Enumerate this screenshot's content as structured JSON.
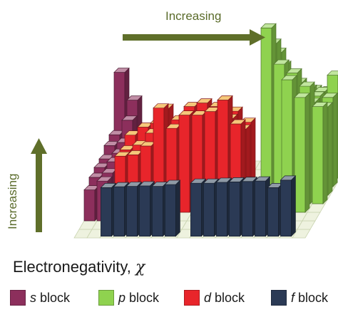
{
  "chart_data": {
    "type": "bar",
    "subtype": "3d-bar-periodic-table",
    "xlabel": "Electronegativity, χ",
    "xlabel_text": "Electronegativity,",
    "xlabel_symbol": "χ",
    "arrow_horizontal": "Increasing",
    "arrow_vertical": "Increasing",
    "legend": [
      {
        "letter": "s",
        "text": "block",
        "color": "#8c2f5c",
        "id": "s"
      },
      {
        "letter": "p",
        "text": "block",
        "color": "#8fd24f",
        "id": "p"
      },
      {
        "letter": "d",
        "text": "block",
        "color": "#e8252b",
        "id": "d"
      },
      {
        "letter": "f",
        "text": "block",
        "color": "#2b3a55",
        "id": "f"
      }
    ],
    "legend_placement": "bottom",
    "grid": true,
    "ylim": [
      0,
      4
    ],
    "series": [
      {
        "block": "s",
        "values": [
          [
            2.2,
            0.98,
            0.93,
            0.82,
            0.82,
            0.79,
            0.7
          ],
          [
            1.57,
            1.31,
            1.0,
            0.95,
            0.95,
            0.89,
            0.9
          ]
        ]
      },
      {
        "block": "d",
        "values": [
          [
            1.36,
            1.54,
            1.63,
            1.66,
            1.55,
            1.83,
            1.88,
            1.91,
            1.9,
            1.65
          ],
          [
            1.22,
            1.33,
            1.6,
            2.16,
            1.9,
            2.2,
            2.28,
            2.2,
            1.93,
            1.69
          ],
          [
            1.27,
            1.3,
            1.5,
            2.36,
            1.9,
            2.2,
            2.2,
            2.28,
            2.54,
            2.0
          ]
        ]
      },
      {
        "block": "p",
        "values": [
          [
            2.04,
            2.55,
            3.04,
            3.44,
            3.98
          ],
          [
            1.61,
            1.9,
            2.19,
            2.58,
            3.16
          ],
          [
            1.81,
            2.01,
            2.18,
            2.55,
            2.96,
            3.0
          ],
          [
            1.78,
            1.96,
            2.05,
            2.1,
            2.66,
            2.6
          ],
          [
            1.62,
            2.33,
            2.02,
            2.0,
            2.2
          ]
        ]
      },
      {
        "block": "f",
        "values": [
          1.1,
          1.12,
          1.13,
          1.14,
          1.13,
          1.17,
          1.2,
          1.2,
          1.22,
          1.23,
          1.24,
          1.25,
          1.1,
          1.27
        ]
      }
    ]
  }
}
